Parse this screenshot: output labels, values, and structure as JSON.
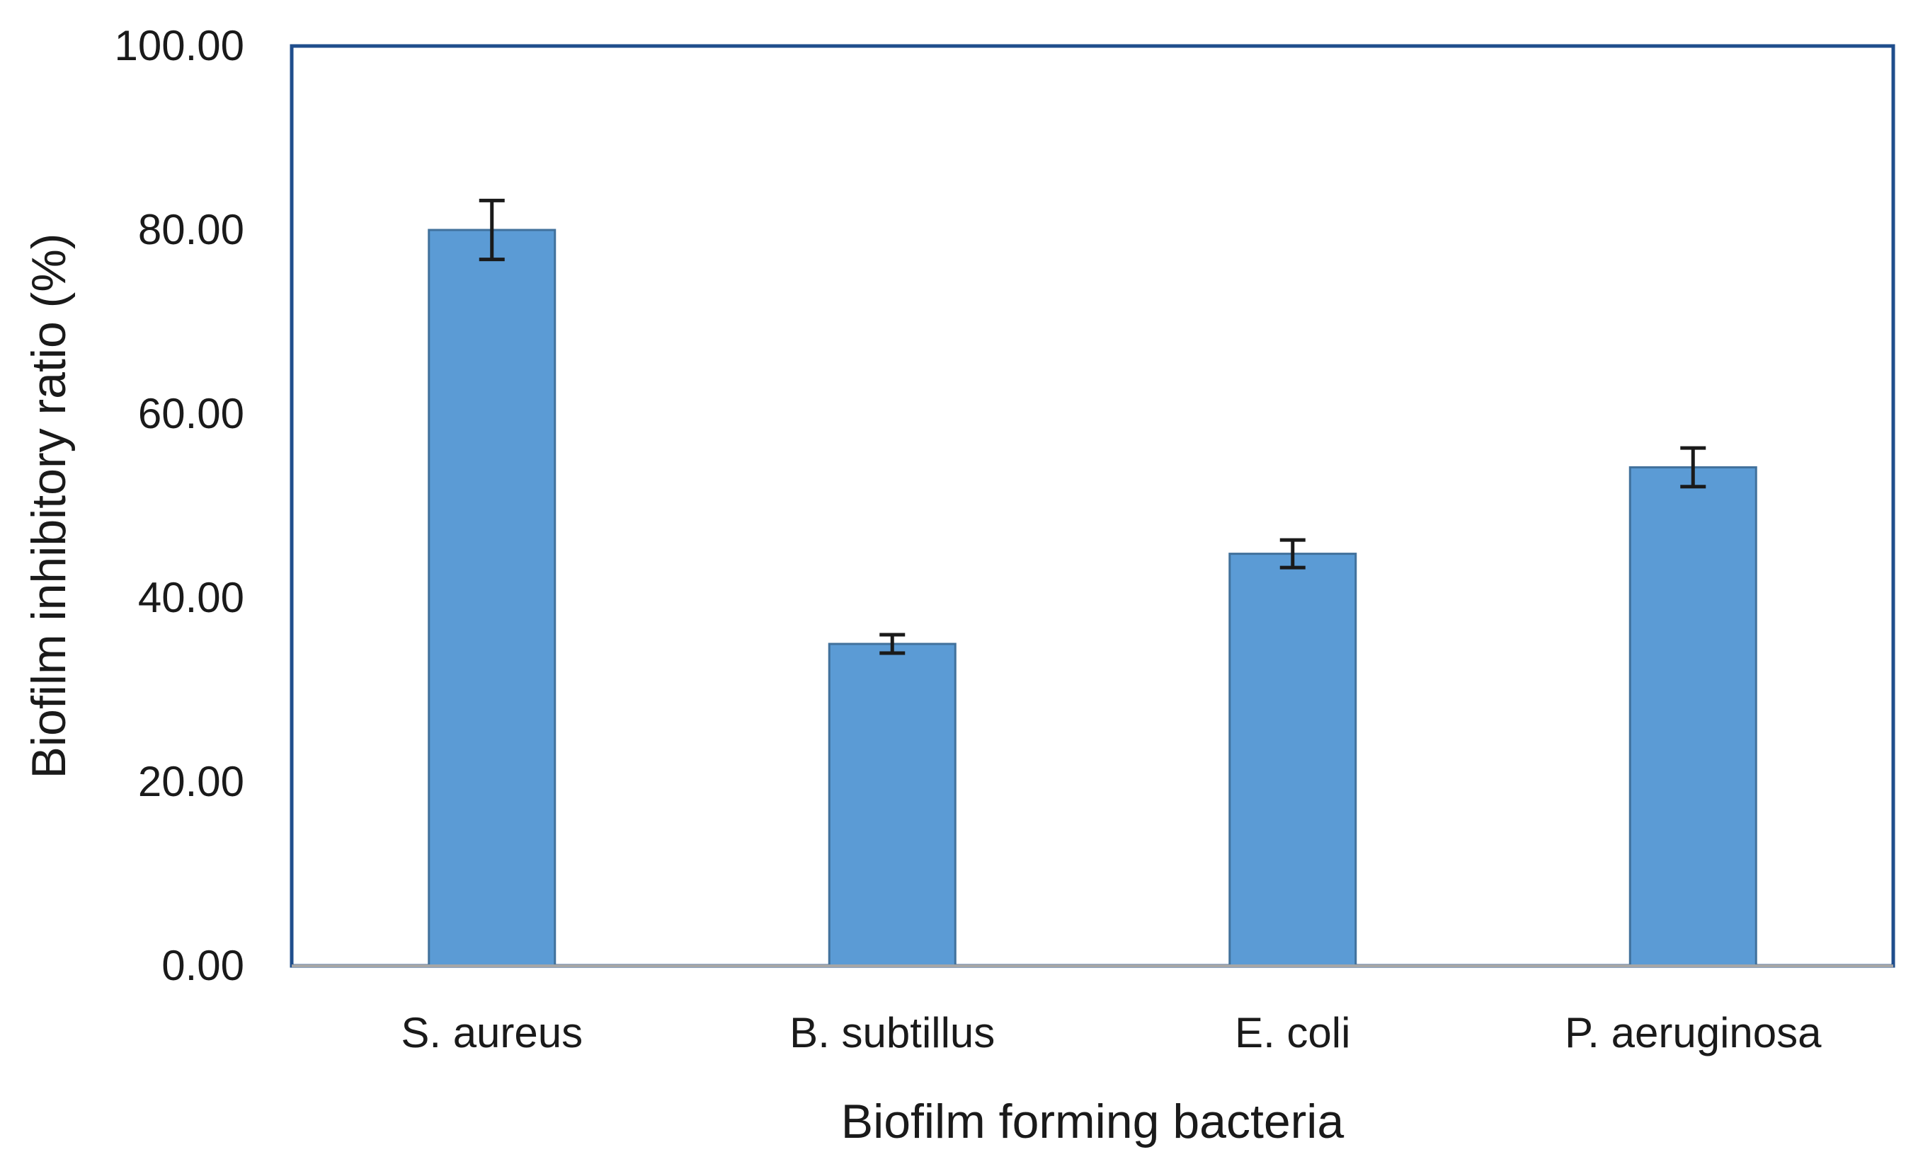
{
  "chart_data": {
    "type": "bar",
    "title": "",
    "xlabel": "Biofilm forming bacteria",
    "ylabel": "Biofilm inhibitory ratio (%)",
    "categories": [
      "S. aureus",
      "B. subtillus",
      "E. coli",
      "P. aeruginosa"
    ],
    "values": [
      80.0,
      35.0,
      44.8,
      54.2
    ],
    "error": [
      3.2,
      1.0,
      1.5,
      2.1
    ],
    "ylim": [
      0,
      100
    ],
    "yticks": [
      "0.00",
      "20.00",
      "40.00",
      "60.00",
      "80.00",
      "100.00"
    ],
    "ytick_values": [
      0,
      20,
      40,
      60,
      80,
      100
    ],
    "grid": false,
    "legend": "none",
    "colors": {
      "bar_fill": "#5b9bd5",
      "bar_stroke": "#41719c",
      "plot_border": "#1f4e8c",
      "error_bar": "#1a1a1a"
    }
  }
}
